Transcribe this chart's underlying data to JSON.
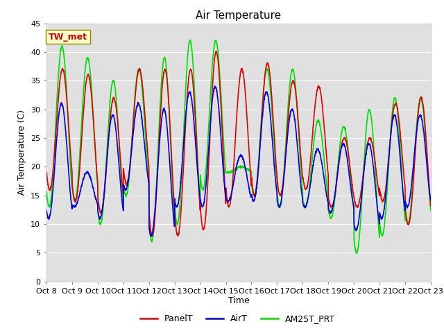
{
  "title": "Air Temperature",
  "ylabel": "Air Temperature (C)",
  "xlabel": "Time",
  "annotation": "TW_met",
  "ylim": [
    0,
    45
  ],
  "series_colors": [
    "#dd0000",
    "#0000dd",
    "#00dd00"
  ],
  "series_names": [
    "PanelT",
    "AirT",
    "AM25T_PRT"
  ],
  "background_inner": "#e0e0e0",
  "background_outer": "#ffffff",
  "grid_color": "#ffffff",
  "title_fontsize": 11,
  "label_fontsize": 9,
  "tick_fontsize": 8,
  "legend_fontsize": 9,
  "line_width": 1.2,
  "yticks": [
    0,
    5,
    10,
    15,
    20,
    25,
    30,
    35,
    40,
    45
  ],
  "tick_labels": [
    "Oct 8",
    "Oct 9",
    "Oct 10",
    "Oct 11",
    "Oct 12",
    "Oct 13",
    "Oct 14",
    "Oct 15",
    "Oct 16",
    "Oct 17",
    "Oct 18",
    "Oct 19",
    "Oct 20",
    "Oct 21",
    "Oct 22",
    "Oct 23"
  ],
  "n_days": 15,
  "n_per_day": 144,
  "daily_data": {
    "panel_high": [
      37,
      36,
      32,
      37,
      37,
      37,
      40,
      37,
      38,
      35,
      34,
      25,
      25,
      31,
      32
    ],
    "panel_low": [
      16,
      14,
      12,
      17,
      8,
      8,
      9,
      13,
      15,
      15,
      16,
      13,
      13,
      14,
      10
    ],
    "air_high": [
      31,
      19,
      29,
      31,
      30,
      33,
      34,
      22,
      33,
      30,
      23,
      24,
      24,
      29,
      29
    ],
    "air_low": [
      11,
      13,
      11,
      16,
      8,
      13,
      13,
      14,
      14,
      13,
      13,
      12,
      9,
      11,
      13
    ],
    "am25_high": [
      41,
      39,
      35,
      37,
      39,
      42,
      42,
      20,
      37,
      37,
      28,
      27,
      30,
      32,
      32
    ],
    "am25_low": [
      13,
      14,
      10,
      15,
      7,
      10,
      16,
      19,
      15,
      13,
      13,
      11,
      5,
      8,
      10
    ]
  }
}
